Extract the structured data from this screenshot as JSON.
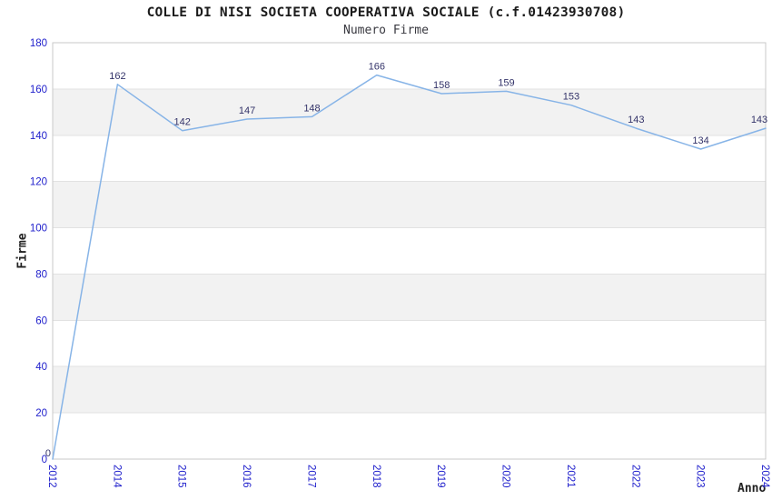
{
  "chart_data": {
    "type": "line",
    "title": "COLLE DI NISI SOCIETA COOPERATIVA SOCIALE (c.f.01423930708)",
    "subtitle": "Numero Firme",
    "xlabel": "Anno",
    "ylabel": "Firme",
    "categories": [
      "2012",
      "2014",
      "2015",
      "2016",
      "2017",
      "2018",
      "2019",
      "2020",
      "2021",
      "2022",
      "2023",
      "2024"
    ],
    "values": [
      0,
      162,
      142,
      147,
      148,
      166,
      158,
      159,
      153,
      143,
      134,
      143
    ],
    "ylim": [
      0,
      180
    ],
    "ytick_step": 20,
    "yticks": [
      0,
      20,
      40,
      60,
      80,
      100,
      120,
      140,
      160,
      180
    ],
    "grid": "alternating-horizontal-bands",
    "legend": "none",
    "data_labels_shown": true,
    "colors": {
      "line": "#87b4e7",
      "tick_label": "#2121cc",
      "data_label": "#333369",
      "band": "#f2f2f2",
      "band_edge": "#e2e2e2",
      "frame": "#c9c9c9",
      "title": "#1b1b1b",
      "subtitle": "#38383f",
      "axis_title": "#222222",
      "background": "#ffffff"
    }
  }
}
